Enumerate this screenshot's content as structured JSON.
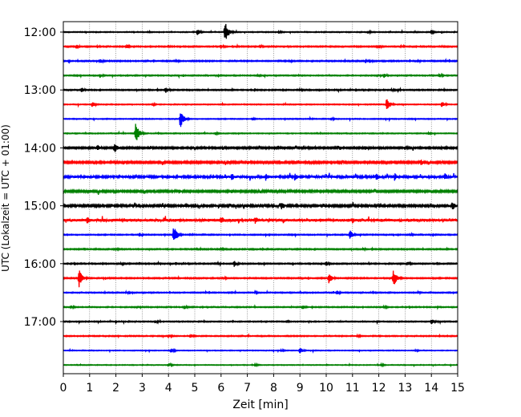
{
  "chart_data": {
    "type": "line",
    "title": "",
    "xlabel": "Zeit  [min]",
    "ylabel": "UTC (Lokalzeit = UTC + 01:00)",
    "xlim": [
      0,
      15
    ],
    "x_ticks": [
      "0",
      "1",
      "2",
      "3",
      "4",
      "5",
      "6",
      "7",
      "8",
      "9",
      "10",
      "11",
      "12",
      "13",
      "14",
      "15"
    ],
    "vertical_grid": true,
    "y_ticks": [
      "12:00",
      "13:00",
      "14:00",
      "15:00",
      "16:00",
      "17:00"
    ],
    "trace_interval_min": 15,
    "trace_colors": [
      "#000000",
      "#ff0000",
      "#0000ff",
      "#008000"
    ],
    "series": [
      {
        "start": "12:00",
        "color": "#000000",
        "noise": 0.6,
        "events": [
          {
            "t": 5.1,
            "a": 4
          },
          {
            "t": 6.15,
            "a": 14
          },
          {
            "t": 8.2,
            "a": 2
          },
          {
            "t": 11.6,
            "a": 2
          },
          {
            "t": 14.0,
            "a": 2
          }
        ]
      },
      {
        "start": "12:15",
        "color": "#ff0000",
        "noise": 0.8,
        "events": [
          {
            "t": 0.5,
            "a": 3
          },
          {
            "t": 1.3,
            "a": 2
          },
          {
            "t": 2.4,
            "a": 3
          },
          {
            "t": 6.0,
            "a": 3
          },
          {
            "t": 7.5,
            "a": 2
          },
          {
            "t": 12.0,
            "a": 3
          }
        ]
      },
      {
        "start": "12:30",
        "color": "#0000ff",
        "noise": 0.8,
        "events": [
          {
            "t": 1.4,
            "a": 3
          },
          {
            "t": 4.3,
            "a": 2
          },
          {
            "t": 8.6,
            "a": 2
          },
          {
            "t": 11.5,
            "a": 3
          },
          {
            "t": 13.5,
            "a": 2
          }
        ]
      },
      {
        "start": "12:45",
        "color": "#008000",
        "noise": 0.7,
        "events": [
          {
            "t": 1.4,
            "a": 3
          },
          {
            "t": 7.4,
            "a": 2
          },
          {
            "t": 12.2,
            "a": 3
          },
          {
            "t": 14.3,
            "a": 3
          }
        ]
      },
      {
        "start": "13:00",
        "color": "#000000",
        "noise": 0.8,
        "events": [
          {
            "t": 0.7,
            "a": 3
          },
          {
            "t": 3.9,
            "a": 4
          },
          {
            "t": 9.0,
            "a": 2
          },
          {
            "t": 12.5,
            "a": 2
          }
        ]
      },
      {
        "start": "13:15",
        "color": "#ff0000",
        "noise": 0.6,
        "events": [
          {
            "t": 1.1,
            "a": 4
          },
          {
            "t": 3.4,
            "a": 2
          },
          {
            "t": 12.3,
            "a": 9
          },
          {
            "t": 14.4,
            "a": 4
          }
        ]
      },
      {
        "start": "13:30",
        "color": "#0000ff",
        "noise": 0.6,
        "events": [
          {
            "t": 4.45,
            "a": 12
          },
          {
            "t": 7.2,
            "a": 2
          },
          {
            "t": 10.2,
            "a": 2
          }
        ]
      },
      {
        "start": "13:45",
        "color": "#008000",
        "noise": 0.6,
        "events": [
          {
            "t": 2.75,
            "a": 14
          },
          {
            "t": 5.8,
            "a": 2
          },
          {
            "t": 13.9,
            "a": 2
          }
        ]
      },
      {
        "start": "14:00",
        "color": "#000000",
        "noise": 1.2,
        "events": [
          {
            "t": 1.3,
            "a": 4
          },
          {
            "t": 1.95,
            "a": 7
          },
          {
            "t": 3.3,
            "a": 3
          },
          {
            "t": 11.5,
            "a": 3
          },
          {
            "t": 13.0,
            "a": 3
          }
        ]
      },
      {
        "start": "14:15",
        "color": "#ff0000",
        "noise": 1.4,
        "events": [
          {
            "t": 2.3,
            "a": 3
          },
          {
            "t": 7.0,
            "a": 3
          },
          {
            "t": 8.3,
            "a": 3
          },
          {
            "t": 13.6,
            "a": 4
          }
        ]
      },
      {
        "start": "14:30",
        "color": "#0000ff",
        "noise": 1.8,
        "events": [
          {
            "t": 6.4,
            "a": 5
          },
          {
            "t": 7.7,
            "a": 5
          },
          {
            "t": 8.8,
            "a": 5
          },
          {
            "t": 11.9,
            "a": 6
          },
          {
            "t": 12.6,
            "a": 5
          },
          {
            "t": 14.5,
            "a": 5
          }
        ]
      },
      {
        "start": "14:45",
        "color": "#008000",
        "noise": 1.4,
        "events": [
          {
            "t": 1.0,
            "a": 3
          },
          {
            "t": 4.4,
            "a": 3
          },
          {
            "t": 6.4,
            "a": 3
          }
        ]
      },
      {
        "start": "15:00",
        "color": "#000000",
        "noise": 1.6,
        "events": [
          {
            "t": 8.3,
            "a": 6
          },
          {
            "t": 14.8,
            "a": 6
          }
        ]
      },
      {
        "start": "15:15",
        "color": "#ff0000",
        "noise": 2.2,
        "events": [
          {
            "t": 0.9,
            "a": 5
          },
          {
            "t": 6.0,
            "a": 6
          },
          {
            "t": 7.3,
            "a": 5
          },
          {
            "t": 11.0,
            "a": 4
          }
        ]
      },
      {
        "start": "15:30",
        "color": "#0000ff",
        "noise": 0.7,
        "events": [
          {
            "t": 2.9,
            "a": 3
          },
          {
            "t": 4.2,
            "a": 12
          },
          {
            "t": 10.9,
            "a": 6
          },
          {
            "t": 13.2,
            "a": 2
          }
        ]
      },
      {
        "start": "15:45",
        "color": "#008000",
        "noise": 0.8,
        "events": [
          {
            "t": 2.0,
            "a": 2
          },
          {
            "t": 6.0,
            "a": 2
          },
          {
            "t": 11.4,
            "a": 2
          }
        ]
      },
      {
        "start": "16:00",
        "color": "#000000",
        "noise": 0.8,
        "events": [
          {
            "t": 2.2,
            "a": 2
          },
          {
            "t": 6.5,
            "a": 4
          },
          {
            "t": 10.0,
            "a": 3
          },
          {
            "t": 13.1,
            "a": 3
          }
        ]
      },
      {
        "start": "16:15",
        "color": "#ff0000",
        "noise": 0.8,
        "events": [
          {
            "t": 0.6,
            "a": 12
          },
          {
            "t": 6.1,
            "a": 2
          },
          {
            "t": 10.1,
            "a": 7
          },
          {
            "t": 12.55,
            "a": 12
          }
        ]
      },
      {
        "start": "16:30",
        "color": "#0000ff",
        "noise": 0.7,
        "events": [
          {
            "t": 2.4,
            "a": 2
          },
          {
            "t": 7.3,
            "a": 2
          },
          {
            "t": 10.4,
            "a": 3
          },
          {
            "t": 13.5,
            "a": 2
          }
        ]
      },
      {
        "start": "16:45",
        "color": "#008000",
        "noise": 0.7,
        "events": [
          {
            "t": 0.3,
            "a": 3
          },
          {
            "t": 4.6,
            "a": 3
          },
          {
            "t": 9.1,
            "a": 3
          },
          {
            "t": 12.2,
            "a": 2
          }
        ]
      },
      {
        "start": "17:00",
        "color": "#000000",
        "noise": 0.7,
        "events": [
          {
            "t": 3.5,
            "a": 2
          },
          {
            "t": 8.5,
            "a": 2
          },
          {
            "t": 14.0,
            "a": 4
          }
        ]
      },
      {
        "start": "17:15",
        "color": "#ff0000",
        "noise": 0.7,
        "events": [
          {
            "t": 4.0,
            "a": 3
          },
          {
            "t": 4.85,
            "a": 3
          },
          {
            "t": 11.2,
            "a": 2
          }
        ]
      },
      {
        "start": "17:30",
        "color": "#0000ff",
        "noise": 0.5,
        "events": [
          {
            "t": 4.1,
            "a": 3
          },
          {
            "t": 8.3,
            "a": 2
          },
          {
            "t": 9.0,
            "a": 4
          },
          {
            "t": 13.4,
            "a": 2
          }
        ]
      },
      {
        "start": "17:45",
        "color": "#008000",
        "noise": 0.5,
        "events": [
          {
            "t": 4.0,
            "a": 3
          },
          {
            "t": 7.3,
            "a": 2
          },
          {
            "t": 12.1,
            "a": 2
          }
        ]
      }
    ]
  }
}
